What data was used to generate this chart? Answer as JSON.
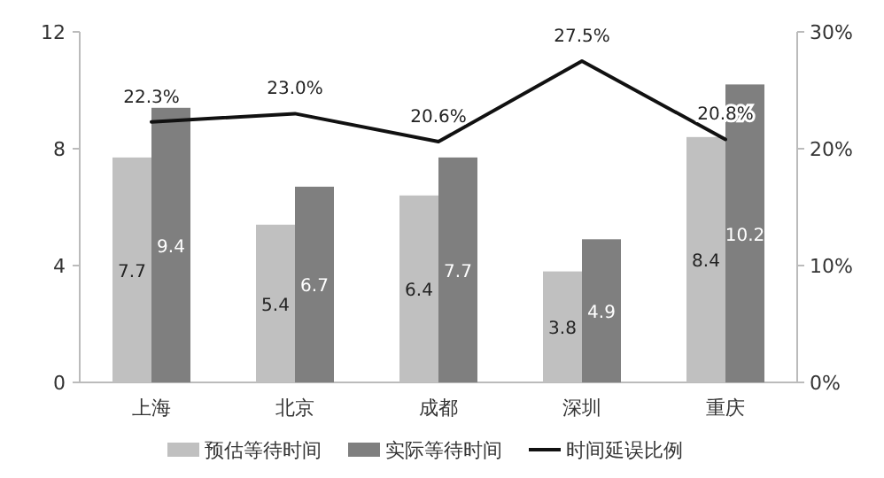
{
  "chart_data": {
    "type": "bar",
    "categories": [
      "上海",
      "北京",
      "成都",
      "深圳",
      "重庆"
    ],
    "series": [
      {
        "name": "预估等待时间",
        "color": "#c0c0c0",
        "values": [
          7.7,
          5.4,
          6.4,
          3.8,
          8.4
        ],
        "value_labels": [
          "7.7",
          "5.4",
          "6.4",
          "3.8",
          "8.4"
        ]
      },
      {
        "name": "实际等待时间",
        "color": "#7f7f7f",
        "values": [
          9.4,
          6.7,
          7.7,
          4.9,
          10.2
        ],
        "value_labels": [
          "9.4",
          "6.7",
          "7.7",
          "4.9",
          "10.2"
        ]
      },
      {
        "name": "时间延误比例",
        "type": "line",
        "axis": "y2",
        "color": "#111111",
        "values": [
          22.3,
          23.0,
          20.6,
          27.5,
          20.8
        ],
        "value_labels": [
          "22.3%",
          "23.0%",
          "20.6%",
          "27.5%",
          "20.8%"
        ]
      }
    ],
    "ylim": [
      0,
      12
    ],
    "yticks": [
      0,
      4,
      8,
      12
    ],
    "y2lim": [
      0,
      30
    ],
    "y2ticks": [
      {
        "value": 0,
        "label": "0%"
      },
      {
        "value": 10,
        "label": "10%"
      },
      {
        "value": 20,
        "label": "20%"
      },
      {
        "value": 30,
        "label": "30%"
      }
    ],
    "legend": "bottom"
  }
}
